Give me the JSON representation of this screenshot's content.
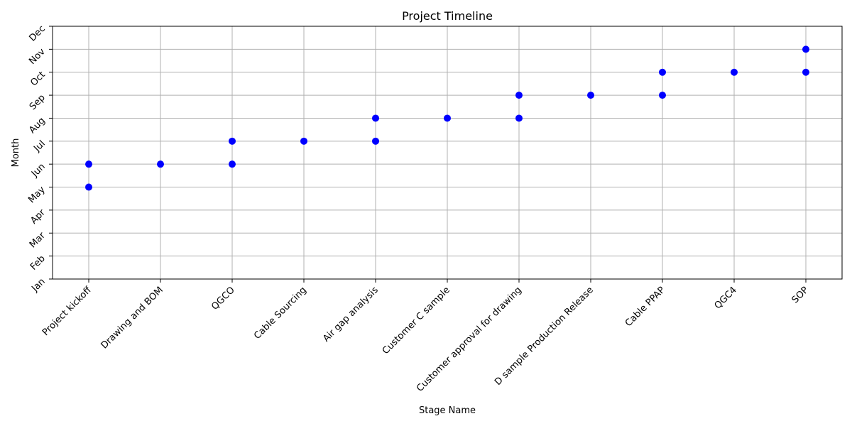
{
  "chart_data": {
    "type": "scatter",
    "title": "Project Timeline",
    "xlabel": "Stage Name",
    "ylabel": "Month",
    "categories": [
      "Project kickoff",
      "Drawing and BOM",
      "QGCO",
      "Cable Sourcing",
      "Air gap analysis",
      "Customer C sample",
      "Customer approval for drawing",
      "D sample Production Release",
      "Cable PPAP",
      "QGC4",
      "SOP"
    ],
    "y_ticks": [
      "Jan",
      "Feb",
      "Mar",
      "Apr",
      "May",
      "Jun",
      "Jul",
      "Aug",
      "Sep",
      "Oct",
      "Nov",
      "Dec"
    ],
    "ylim": [
      "Jan",
      "Dec"
    ],
    "grid": true,
    "marker_color": "#0000ff",
    "points": [
      {
        "x": "Project kickoff",
        "y": "May"
      },
      {
        "x": "Project kickoff",
        "y": "Jun"
      },
      {
        "x": "Drawing and BOM",
        "y": "Jun"
      },
      {
        "x": "QGCO",
        "y": "Jun"
      },
      {
        "x": "QGCO",
        "y": "Jul"
      },
      {
        "x": "Cable Sourcing",
        "y": "Jul"
      },
      {
        "x": "Air gap analysis",
        "y": "Jul"
      },
      {
        "x": "Air gap analysis",
        "y": "Aug"
      },
      {
        "x": "Customer C sample",
        "y": "Aug"
      },
      {
        "x": "Customer approval for drawing",
        "y": "Aug"
      },
      {
        "x": "Customer approval for drawing",
        "y": "Sep"
      },
      {
        "x": "D sample Production Release",
        "y": "Sep"
      },
      {
        "x": "Cable PPAP",
        "y": "Sep"
      },
      {
        "x": "Cable PPAP",
        "y": "Oct"
      },
      {
        "x": "QGC4",
        "y": "Oct"
      },
      {
        "x": "SOP",
        "y": "Oct"
      },
      {
        "x": "SOP",
        "y": "Nov"
      }
    ]
  }
}
